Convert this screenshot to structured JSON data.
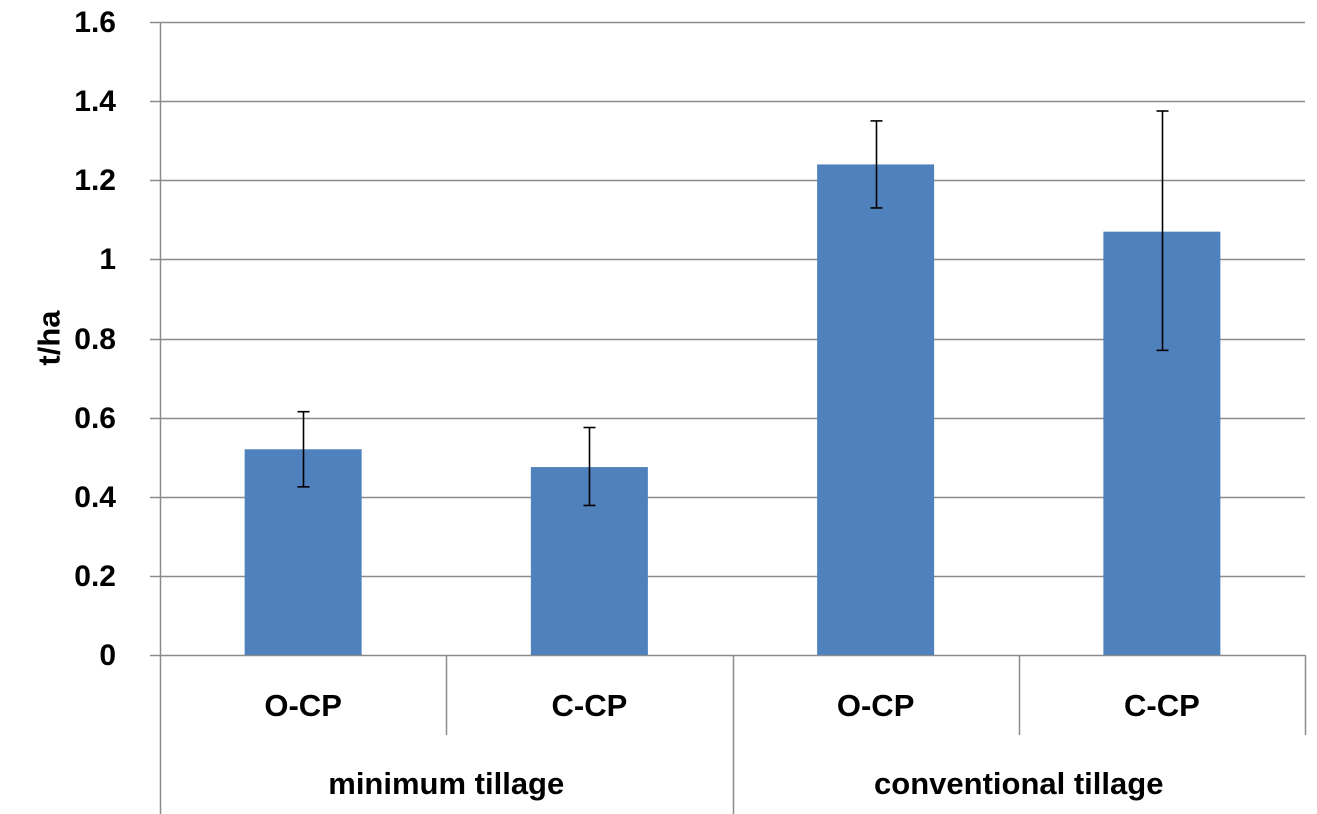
{
  "chart_data": {
    "type": "bar",
    "title": "",
    "xlabel": "",
    "ylabel": "t/ha",
    "ylim": [
      0,
      1.6
    ],
    "yticks": [
      "0",
      "0.2",
      "0.4",
      "0.6",
      "0.8",
      "1",
      "1.2",
      "1.4",
      "1.6"
    ],
    "grid": true,
    "legend": "none",
    "bar_color": "#4f81bd",
    "groups": [
      {
        "label": "minimum tillage",
        "categories": [
          "O-CP",
          "C-CP"
        ]
      },
      {
        "label": "conventional tillage",
        "categories": [
          "O-CP",
          "C-CP"
        ]
      }
    ],
    "categories": [
      "O-CP",
      "C-CP",
      "O-CP",
      "C-CP"
    ],
    "values": [
      0.52,
      0.475,
      1.24,
      1.07
    ],
    "error_low": [
      0.425,
      0.378,
      1.13,
      0.77
    ],
    "error_high": [
      0.615,
      0.575,
      1.35,
      1.375
    ]
  }
}
